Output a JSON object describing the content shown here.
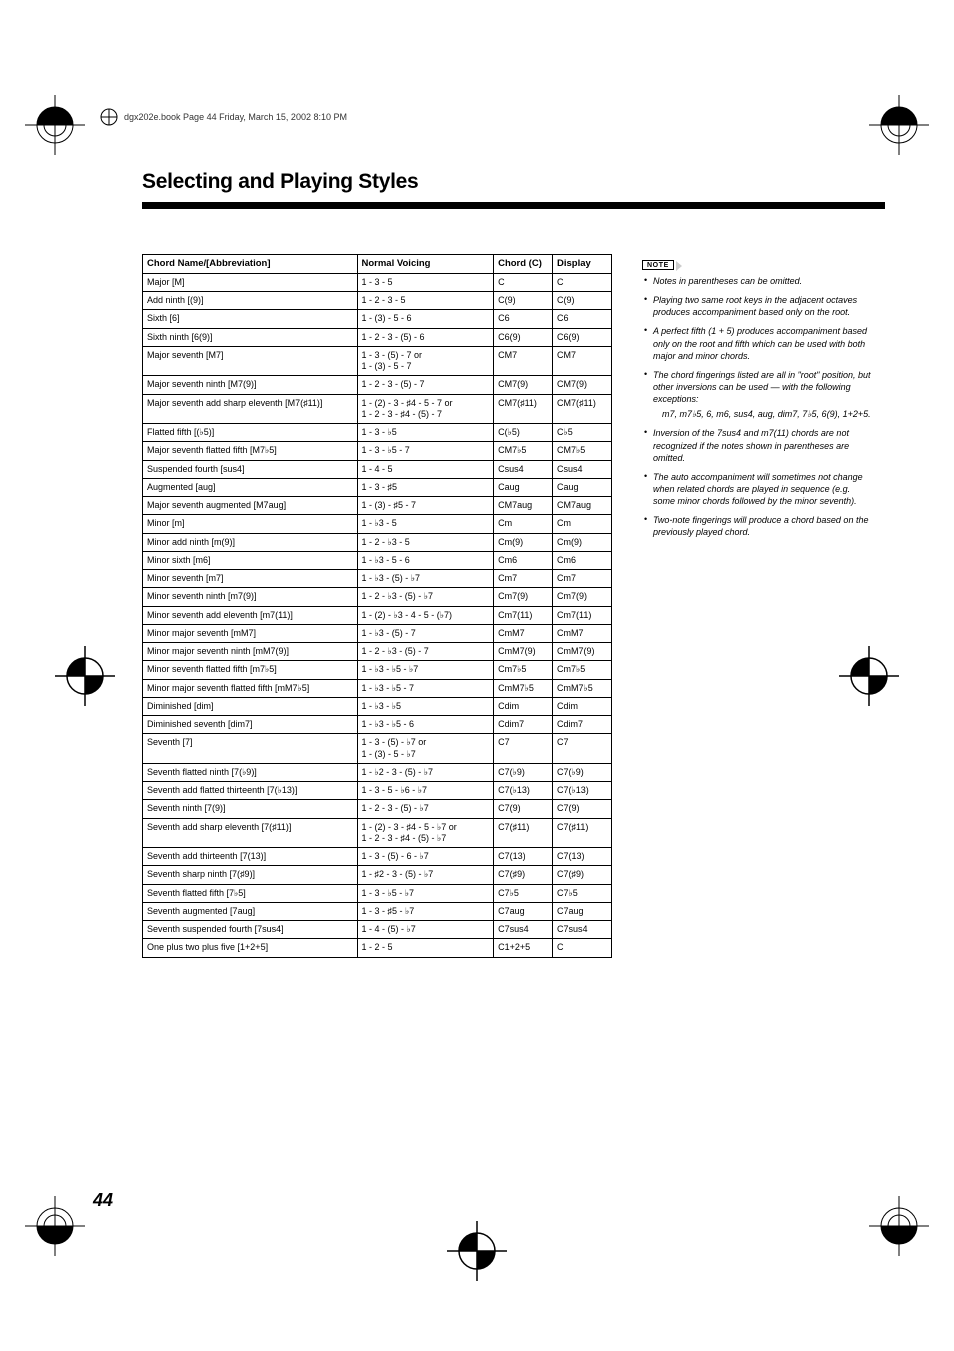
{
  "meta": {
    "header_text": "dgx202e.book  Page 44  Friday, March 15, 2002  8:10 PM"
  },
  "page": {
    "title": "Selecting and Playing Styles",
    "number": "44"
  },
  "table": {
    "headers": [
      "Chord Name/[Abbreviation]",
      "Normal Voicing",
      "Chord (C)",
      "Display"
    ],
    "rows": [
      [
        "Major [M]",
        "1 - 3 - 5",
        "C",
        "C"
      ],
      [
        "Add ninth [(9)]",
        "1 - 2 - 3 - 5",
        "C(9)",
        "C(9)"
      ],
      [
        "Sixth [6]",
        "1 - (3) - 5 - 6",
        "C6",
        "C6"
      ],
      [
        "Sixth ninth [6(9)]",
        "1 - 2 - 3 - (5) - 6",
        "C6(9)",
        "C6(9)"
      ],
      [
        "Major seventh [M7]",
        "1 - 3 - (5) - 7 or\n1 - (3) - 5 - 7",
        "CM7",
        "CM7"
      ],
      [
        "Major seventh ninth [M7(9)]",
        "1 - 2 - 3 - (5) - 7",
        "CM7(9)",
        "CM7(9)"
      ],
      [
        "Major seventh add sharp eleventh [M7(♯11)]",
        "1 - (2) - 3 - ♯4 - 5 - 7 or\n1 - 2 - 3 - ♯4 - (5) - 7",
        "CM7(♯11)",
        "CM7(♯11)"
      ],
      [
        "Flatted fifth [(♭5)]",
        "1 - 3 - ♭5",
        "C(♭5)",
        "C♭5"
      ],
      [
        "Major seventh flatted fifth [M7♭5]",
        "1 - 3 - ♭5 - 7",
        "CM7♭5",
        "CM7♭5"
      ],
      [
        "Suspended fourth [sus4]",
        "1 - 4 - 5",
        "Csus4",
        "Csus4"
      ],
      [
        "Augmented [aug]",
        "1 - 3 - ♯5",
        "Caug",
        "Caug"
      ],
      [
        "Major seventh augmented [M7aug]",
        "1 - (3) - ♯5 - 7",
        "CM7aug",
        "CM7aug"
      ],
      [
        "Minor [m]",
        "1 - ♭3 - 5",
        "Cm",
        "Cm"
      ],
      [
        "Minor add ninth [m(9)]",
        "1 - 2 - ♭3 - 5",
        "Cm(9)",
        "Cm(9)"
      ],
      [
        "Minor sixth [m6]",
        "1 - ♭3 - 5 - 6",
        "Cm6",
        "Cm6"
      ],
      [
        "Minor seventh [m7]",
        "1 - ♭3 - (5) - ♭7",
        "Cm7",
        "Cm7"
      ],
      [
        "Minor seventh ninth [m7(9)]",
        "1 - 2 - ♭3 - (5) - ♭7",
        "Cm7(9)",
        "Cm7(9)"
      ],
      [
        "Minor seventh add eleventh [m7(11)]",
        "1 - (2) - ♭3 - 4 - 5 - (♭7)",
        "Cm7(11)",
        "Cm7(11)"
      ],
      [
        "Minor major seventh [mM7]",
        "1 - ♭3 - (5) - 7",
        "CmM7",
        "CmM7"
      ],
      [
        "Minor major seventh ninth [mM7(9)]",
        "1 - 2 - ♭3 - (5) - 7",
        "CmM7(9)",
        "CmM7(9)"
      ],
      [
        "Minor seventh flatted fifth [m7♭5]",
        "1 - ♭3 - ♭5 - ♭7",
        "Cm7♭5",
        "Cm7♭5"
      ],
      [
        "Minor major seventh flatted fifth [mM7♭5]",
        "1 - ♭3 - ♭5 - 7",
        "CmM7♭5",
        "CmM7♭5"
      ],
      [
        "Diminished [dim]",
        "1 - ♭3 - ♭5",
        "Cdim",
        "Cdim"
      ],
      [
        "Diminished seventh [dim7]",
        "1 - ♭3 - ♭5 - 6",
        "Cdim7",
        "Cdim7"
      ],
      [
        "Seventh [7]",
        "1 - 3 - (5) - ♭7 or\n1 - (3) - 5 - ♭7",
        "C7",
        "C7"
      ],
      [
        "Seventh flatted ninth [7(♭9)]",
        "1 - ♭2 - 3 - (5) - ♭7",
        "C7(♭9)",
        "C7(♭9)"
      ],
      [
        "Seventh add flatted thirteenth [7(♭13)]",
        "1 - 3 - 5 - ♭6 - ♭7",
        "C7(♭13)",
        "C7(♭13)"
      ],
      [
        "Seventh ninth [7(9)]",
        "1 - 2 - 3 - (5) - ♭7",
        "C7(9)",
        "C7(9)"
      ],
      [
        "Seventh add sharp eleventh [7(♯11)]",
        "1 - (2) - 3 - ♯4 - 5 - ♭7 or\n1 - 2 - 3 - ♯4 - (5) - ♭7",
        "C7(♯11)",
        "C7(♯11)"
      ],
      [
        "Seventh add thirteenth [7(13)]",
        "1 - 3 - (5) - 6 - ♭7",
        "C7(13)",
        "C7(13)"
      ],
      [
        "Seventh sharp ninth [7(♯9)]",
        "1 - ♯2 - 3 - (5) - ♭7",
        "C7(♯9)",
        "C7(♯9)"
      ],
      [
        "Seventh flatted fifth [7♭5]",
        "1 - 3 - ♭5 - ♭7",
        "C7♭5",
        "C7♭5"
      ],
      [
        "Seventh augmented [7aug]",
        "1 - 3 - ♯5 - ♭7",
        "C7aug",
        "C7aug"
      ],
      [
        "Seventh suspended fourth [7sus4]",
        "1 - 4 - (5) - ♭7",
        "C7sus4",
        "C7sus4"
      ],
      [
        "One plus two plus five [1+2+5]",
        "1 - 2 - 5",
        "C1+2+5",
        "C"
      ]
    ]
  },
  "notes": {
    "label": "NOTE",
    "items": [
      "Notes in parentheses can be omitted.",
      "Playing two same root keys in the adjacent octaves produces accompaniment based only on the root.",
      "A perfect fifth (1 + 5) produces accompaniment based only on the root and fifth which can be used with both major and minor chords.",
      "The chord fingerings listed are all in \"root\" position, but other inversions can be used — with the following exceptions:",
      "Inversion of the 7sus4 and m7(11) chords are not recognized if the notes shown in parentheses are omitted.",
      "The auto accompaniment will sometimes not change when related chords are played in sequence (e.g. some minor chords followed by the minor seventh).",
      "Two-note fingerings will produce a chord based on the previously played chord."
    ],
    "sub_after_4": "m7, m7♭5, 6, m6, sus4, aug, dim7, 7♭5, 6(9), 1+2+5."
  }
}
